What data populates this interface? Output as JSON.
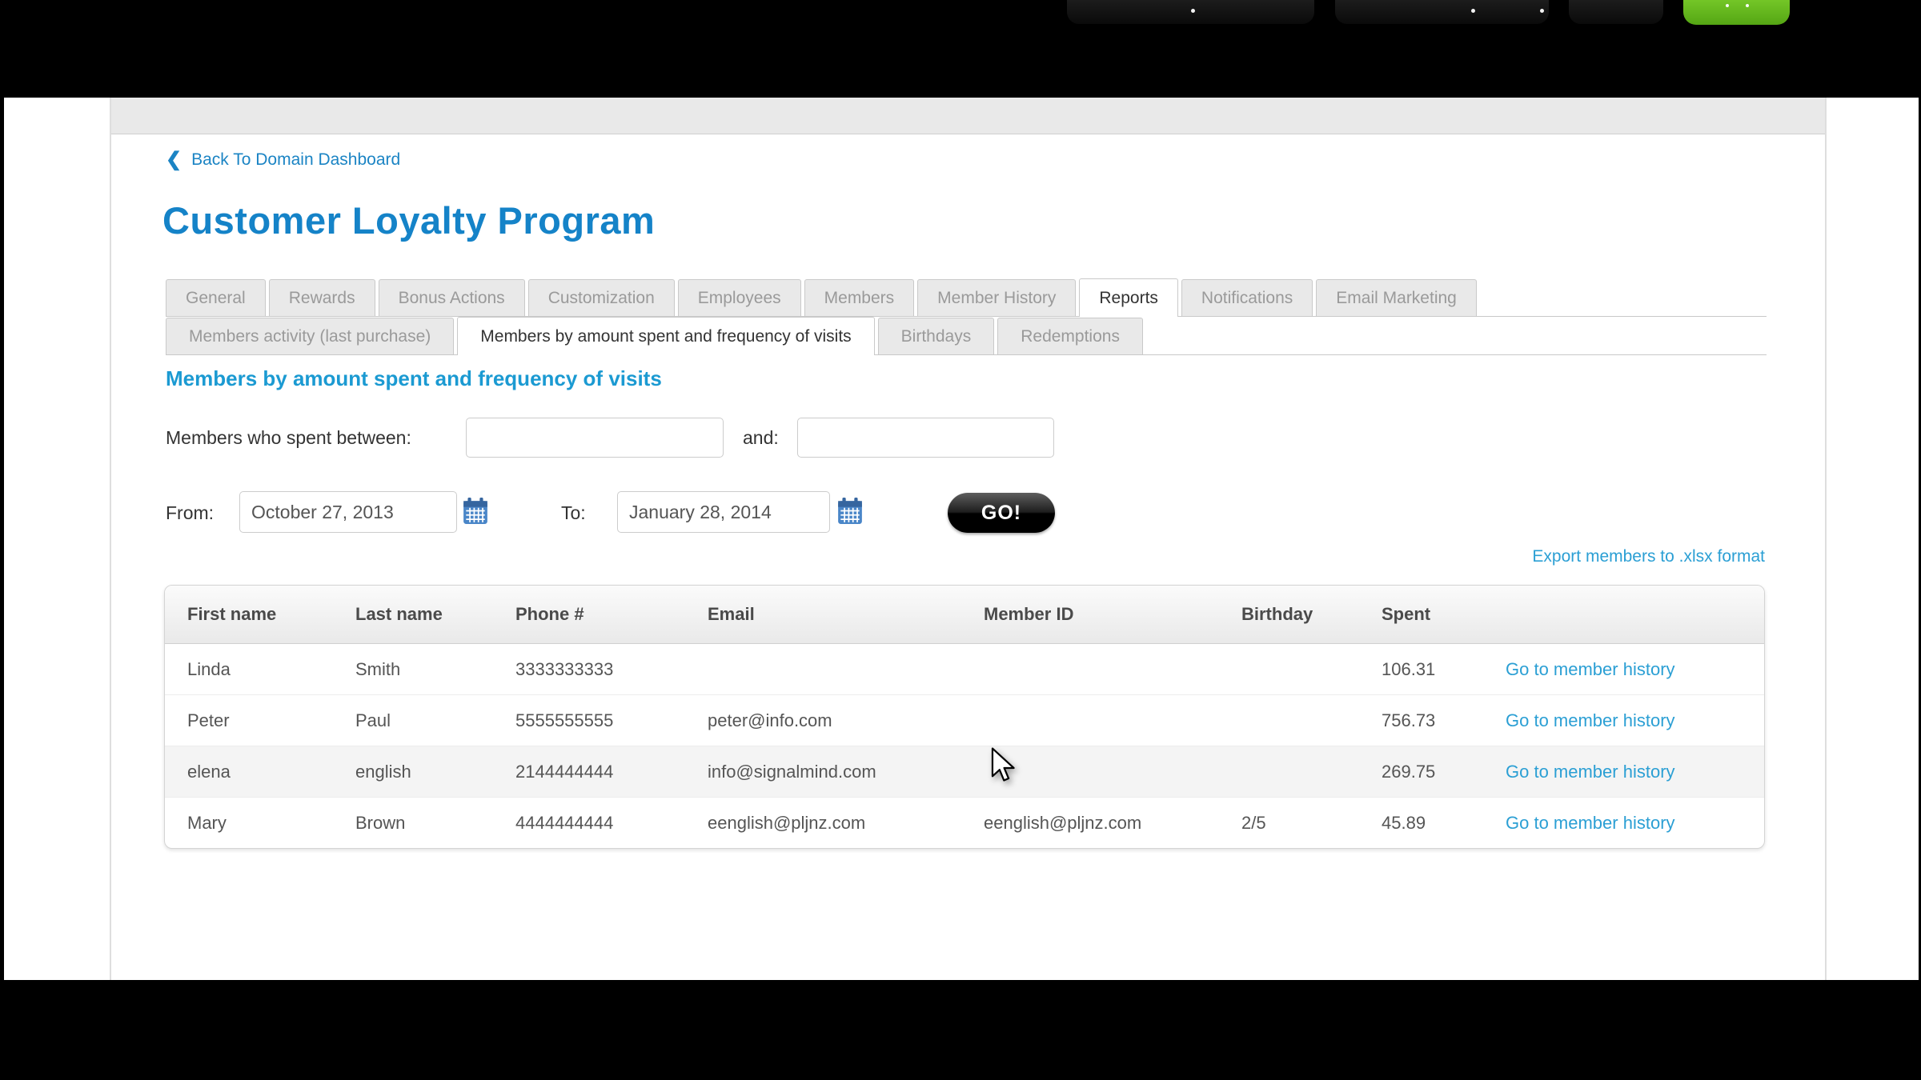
{
  "page": {
    "back_link": "Back To Domain Dashboard",
    "title": "Customer Loyalty Program"
  },
  "tabs": {
    "primary": [
      "General",
      "Rewards",
      "Bonus Actions",
      "Customization",
      "Employees",
      "Members",
      "Member History",
      "Reports",
      "Notifications",
      "Email Marketing"
    ],
    "primary_active": "Reports",
    "secondary": [
      "Members activity (last purchase)",
      "Members by amount spent and frequency of visits",
      "Birthdays",
      "Redemptions"
    ],
    "secondary_active": "Members by amount spent and frequency of visits"
  },
  "report": {
    "heading": "Members by amount spent and frequency of visits",
    "spent_filter_label": "Members who spent between:",
    "and_label": "and:",
    "spent_min_value": "",
    "spent_max_value": "",
    "from_label": "From:",
    "from_value": "October 27, 2013",
    "to_label": "To:",
    "to_value": "January 28, 2014",
    "go_label": "GO!",
    "export_link": "Export members to .xlsx format"
  },
  "table": {
    "headers": [
      "First name",
      "Last name",
      "Phone #",
      "Email",
      "Member ID",
      "Birthday",
      "Spent",
      ""
    ],
    "action_label": "Go to member history",
    "rows": [
      {
        "first": "Linda",
        "last": "Smith",
        "phone": "3333333333",
        "email": "",
        "member_id": "",
        "birthday": "",
        "spent": "106.31",
        "hover": false
      },
      {
        "first": "Peter",
        "last": "Paul",
        "phone": "5555555555",
        "email": "peter@info.com",
        "member_id": "",
        "birthday": "",
        "spent": "756.73",
        "hover": false
      },
      {
        "first": "elena",
        "last": "english",
        "phone": "2144444444",
        "email": "info@signalmind.com",
        "member_id": "",
        "birthday": "",
        "spent": "269.75",
        "hover": true
      },
      {
        "first": "Mary",
        "last": "Brown",
        "phone": "4444444444",
        "email": "eenglish@pljnz.com",
        "member_id": "eenglish@pljnz.com",
        "birthday": "2/5",
        "spent": "45.89",
        "hover": false
      }
    ]
  },
  "colors": {
    "title_blue": "#1583c8",
    "subheading_blue": "#1b9ad2",
    "link_blue": "#2b9fd4",
    "tab_inactive_bg": "#e9e9e9",
    "green_button": "#5fb31c",
    "dark_button": "#111111"
  }
}
